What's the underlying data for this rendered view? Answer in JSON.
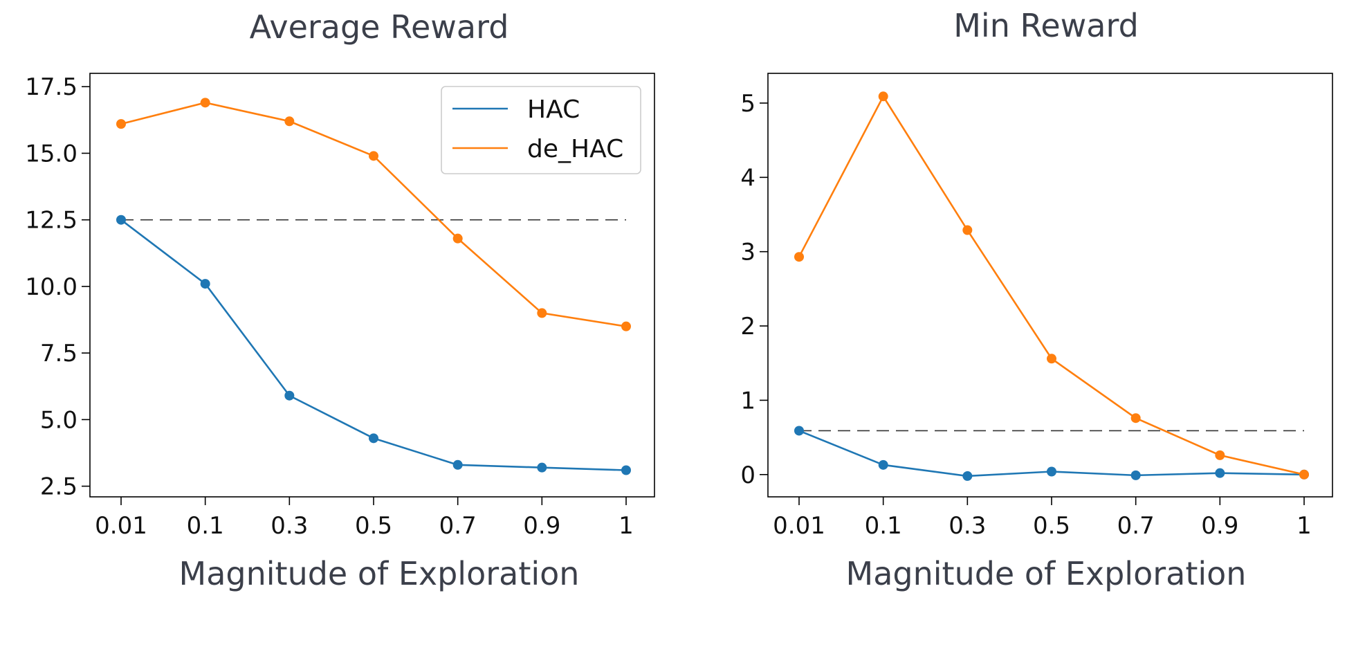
{
  "colors": {
    "HAC": "#1f77b4",
    "de_HAC": "#ff7f0e",
    "reference_line": "#333333",
    "title_text": "#3b3f4a"
  },
  "chart_data": [
    {
      "type": "line",
      "title": "Average Reward",
      "xlabel": "Magnitude of Exploration",
      "ylabel": "",
      "categories": [
        "0.01",
        "0.1",
        "0.3",
        "0.5",
        "0.7",
        "0.9",
        "1"
      ],
      "series": [
        {
          "name": "HAC",
          "values": [
            12.5,
            10.1,
            5.9,
            4.3,
            3.3,
            3.2,
            3.1
          ]
        },
        {
          "name": "de_HAC",
          "values": [
            16.1,
            16.9,
            16.2,
            14.9,
            11.8,
            9.0,
            8.5
          ]
        }
      ],
      "reference_line": {
        "y": 12.5,
        "style": "dashed"
      },
      "yticks": [
        "2.5",
        "5.0",
        "7.5",
        "10.0",
        "12.5",
        "15.0",
        "17.5"
      ],
      "ylim": [
        2.1,
        18.0
      ],
      "legend": {
        "position": "top-right",
        "entries": [
          "HAC",
          "de_HAC"
        ]
      },
      "grid": false
    },
    {
      "type": "line",
      "title": "Min Reward",
      "xlabel": "Magnitude of Exploration",
      "ylabel": "",
      "categories": [
        "0.01",
        "0.1",
        "0.3",
        "0.5",
        "0.7",
        "0.9",
        "1"
      ],
      "series": [
        {
          "name": "HAC",
          "values": [
            0.59,
            0.13,
            -0.02,
            0.04,
            -0.01,
            0.02,
            0.0
          ]
        },
        {
          "name": "de_HAC",
          "values": [
            2.93,
            5.09,
            3.29,
            1.56,
            0.76,
            0.26,
            0.0
          ]
        }
      ],
      "reference_line": {
        "y": 0.59,
        "style": "dashed"
      },
      "yticks": [
        "0",
        "1",
        "2",
        "3",
        "4",
        "5"
      ],
      "ylim": [
        -0.3,
        5.4
      ],
      "grid": false
    }
  ]
}
